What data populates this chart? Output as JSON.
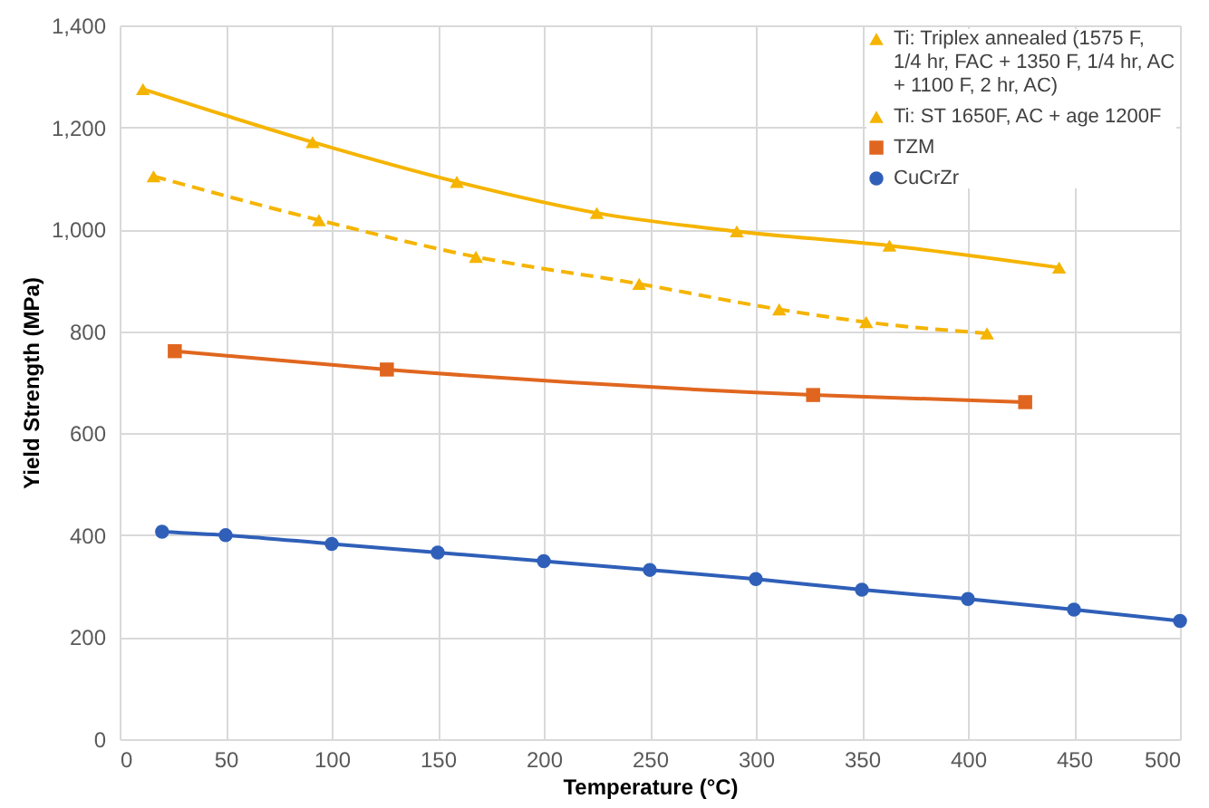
{
  "chart_data": {
    "type": "line",
    "xlabel": "Temperature (°C)",
    "ylabel": "Yield Strength (MPa)",
    "xlim": [
      0,
      500
    ],
    "xticks": [
      0,
      50,
      100,
      150,
      200,
      250,
      300,
      350,
      400,
      450,
      500
    ],
    "ylim": [
      0,
      1400
    ],
    "yticks": [
      0,
      200,
      400,
      600,
      800,
      {
        "value": 1000,
        "label": "1,000"
      },
      {
        "value": 1200,
        "label": "1,200"
      },
      {
        "value": 1400,
        "label": "1,400"
      }
    ],
    "grid": true,
    "legend": "top right",
    "series": [
      {
        "name": "Ti: Triplex annealed (1575 F, 1/4 hr, FAC + 1350 F, 1/4 hr, AC + 1100 F, 2 hr, AC)",
        "color": "#f5b400",
        "marker": "triangle",
        "line_style": "solid",
        "x": [
          11,
          91,
          159,
          225,
          291,
          363,
          443
        ],
        "values": [
          1275,
          1171,
          1093,
          1032,
          996,
          968,
          925
        ]
      },
      {
        "name": "Ti: ST 1650F, AC + age 1200F",
        "color": "#f5b400",
        "marker": "triangle",
        "line_style": "dashed",
        "x": [
          16,
          94,
          168,
          245,
          311,
          352,
          409
        ],
        "values": [
          1104,
          1018,
          946,
          893,
          843,
          818,
          796
        ]
      },
      {
        "name": "TZM",
        "color": "#e0661f",
        "marker": "square",
        "line_style": "solid",
        "x": [
          26,
          126,
          327,
          427
        ],
        "values": [
          761,
          725,
          675,
          661
        ]
      },
      {
        "name": "CuCrZr",
        "color": "#2f5fb8",
        "marker": "circle",
        "line_style": "solid",
        "x": [
          20,
          50,
          100,
          150,
          200,
          250,
          300,
          350,
          400,
          450,
          500
        ],
        "values": [
          407,
          400,
          383,
          366,
          349,
          332,
          314,
          293,
          275,
          254,
          232
        ]
      }
    ]
  }
}
